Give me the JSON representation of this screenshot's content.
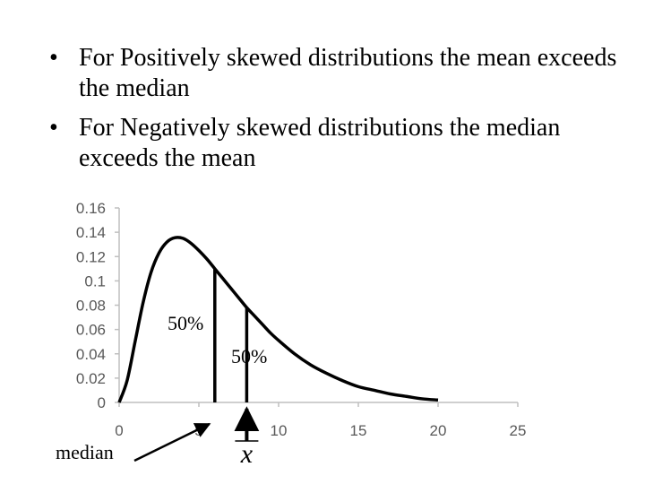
{
  "bullets": [
    {
      "marker": "•",
      "text": "For Positively skewed distributions the mean exceeds the median"
    },
    {
      "marker": "•",
      "text": "For Negatively skewed distributions the median exceeds the mean"
    }
  ],
  "chart_data": {
    "type": "line",
    "title": "",
    "xlabel": "",
    "ylabel": "",
    "xlim": [
      0,
      25
    ],
    "ylim": [
      0,
      0.16
    ],
    "x_ticks": [
      "0",
      "5",
      "10",
      "15",
      "20",
      "25"
    ],
    "y_ticks": [
      "0",
      "0.02",
      "0.04",
      "0.06",
      "0.08",
      "0.1",
      "0.12",
      "0.14",
      "0.16"
    ],
    "grid": false,
    "series": [
      {
        "x": [
          0,
          0.5,
          1,
          1.5,
          2,
          2.5,
          3,
          3.5,
          4,
          4.5,
          5,
          5.5,
          6,
          6.5,
          7,
          7.5,
          8,
          8.5,
          9,
          9.5,
          10,
          11,
          12,
          13,
          14,
          15,
          16,
          17,
          18,
          19,
          20
        ],
        "y": [
          0,
          0.018,
          0.05,
          0.082,
          0.107,
          0.123,
          0.132,
          0.1355,
          0.135,
          0.131,
          0.125,
          0.118,
          0.11,
          0.102,
          0.094,
          0.086,
          0.078,
          0.071,
          0.064,
          0.057,
          0.051,
          0.04,
          0.031,
          0.024,
          0.018,
          0.013,
          0.01,
          0.007,
          0.005,
          0.003,
          0.002
        ],
        "color": "#000000"
      }
    ],
    "markers": {
      "median_x": 6,
      "mean_x": 8
    },
    "annotations": {
      "left_area": "50%",
      "right_area": "50%",
      "median_label": "median",
      "mean_symbol": "x"
    }
  }
}
